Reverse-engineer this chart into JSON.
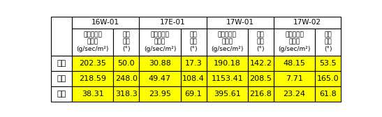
{
  "title_cols": [
    "16W-01",
    "17E-01",
    "17W-01",
    "17W-02"
  ],
  "sub_headers": [
    "부유퇴적물\n이동률\n(g/sec/m²)",
    "이동\n방향\n(°)",
    "부유퇴적물\n이동률\n(g/sec/m²)",
    "이동\n방향\n(°)",
    "부유퇴적물\n이동률\n(g/sec/m²)",
    "이동\n방향\n(°)",
    "부유퇴적물\n이동률\n(g/sec/m²)",
    "이동\n방향\n(°)"
  ],
  "row_labels": [
    "창조",
    "낙조",
    "평균"
  ],
  "data": [
    [
      "202.35",
      "50.0",
      "30.88",
      "17.3",
      "190.18",
      "142.2",
      "48.15",
      "53.5"
    ],
    [
      "218.59",
      "248.0",
      "49.47",
      "108.4",
      "1153.41",
      "208.5",
      "7.71",
      "165.0"
    ],
    [
      "38.31",
      "318.3",
      "23.95",
      "69.1",
      "395.61",
      "216.8",
      "23.24",
      "61.8"
    ]
  ],
  "highlight_color": "#FFFF00",
  "border_color": "#000000",
  "font_size_header": 7.5,
  "font_size_data": 8,
  "font_size_subheader": 6.5
}
